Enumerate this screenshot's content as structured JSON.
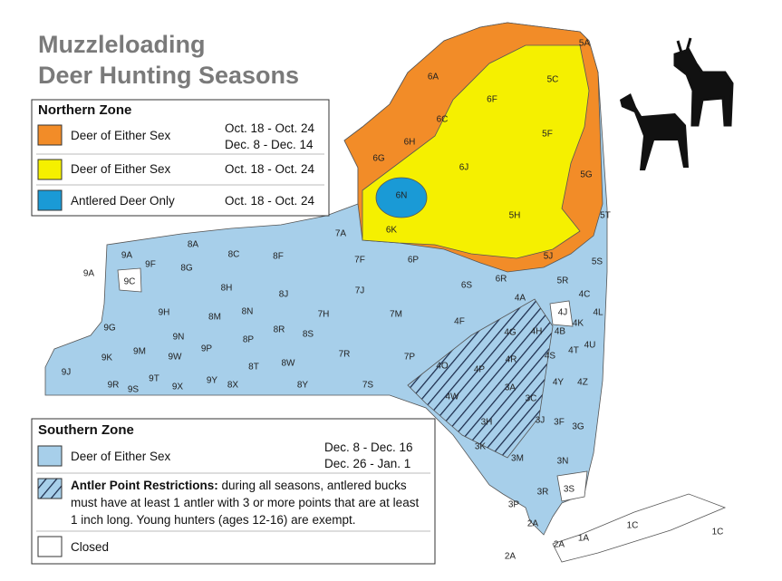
{
  "header": {
    "title_lines": [
      "Muzzleloading",
      "Deer Hunting Seasons"
    ]
  },
  "northern_zone": {
    "heading": "Northern Zone",
    "rows": [
      {
        "label": "Deer of Either Sex",
        "dates": [
          "Oct. 18 - Oct. 24",
          "Dec. 8 - Dec. 14"
        ]
      },
      {
        "label": "Deer of Either Sex",
        "dates": [
          "Oct. 18 - Oct. 24"
        ]
      },
      {
        "label": "Antlered Deer Only",
        "dates": [
          "Oct. 18 - Oct. 24"
        ]
      }
    ]
  },
  "southern_zone": {
    "heading": "Southern Zone",
    "rows": [
      {
        "label": "Deer of Either Sex",
        "dates": [
          "Dec. 8 - Dec. 16",
          "Dec. 26 - Jan. 1"
        ]
      },
      {
        "label": "Antler Point Restrictions:",
        "text_lines": [
          " during all seasons, antlered bucks",
          "must have at least 1 antler with 3 or more points that are at least",
          "1 inch long. Young hunters (ages 12-16) are exempt."
        ]
      },
      {
        "label": "Closed"
      }
    ]
  },
  "map": {
    "units": [
      "5A",
      "6A",
      "5C",
      "6F",
      "6C",
      "5F",
      "6H",
      "6G",
      "6J",
      "5G",
      "6N",
      "5H",
      "6K",
      "5T",
      "7A",
      "5J",
      "8A",
      "9A",
      "8C",
      "8F",
      "7F",
      "6P",
      "5S",
      "9F",
      "8G",
      "9A",
      "9C",
      "6S",
      "6R",
      "5R",
      "8H",
      "8J",
      "7J",
      "4A",
      "4C",
      "4J",
      "4L",
      "9H",
      "8M",
      "8N",
      "7H",
      "7M",
      "4F",
      "4K",
      "9G",
      "8R",
      "8S",
      "4G",
      "4H",
      "4B",
      "9N",
      "8P",
      "4T",
      "4U",
      "9M",
      "9P",
      "9K",
      "9W",
      "7R",
      "7P",
      "4R",
      "4S",
      "8W",
      "8T",
      "4O",
      "4P",
      "9J",
      "9T",
      "7S",
      "8Y",
      "9R",
      "9S",
      "9X",
      "9Y",
      "8X",
      "3A",
      "4Y",
      "4Z",
      "4W",
      "3C",
      "3J",
      "3F",
      "3G",
      "3H",
      "3K",
      "3M",
      "3N",
      "3R",
      "3S",
      "3P",
      "2A",
      "1C",
      "1C",
      "2A",
      "1A",
      "2A"
    ]
  }
}
